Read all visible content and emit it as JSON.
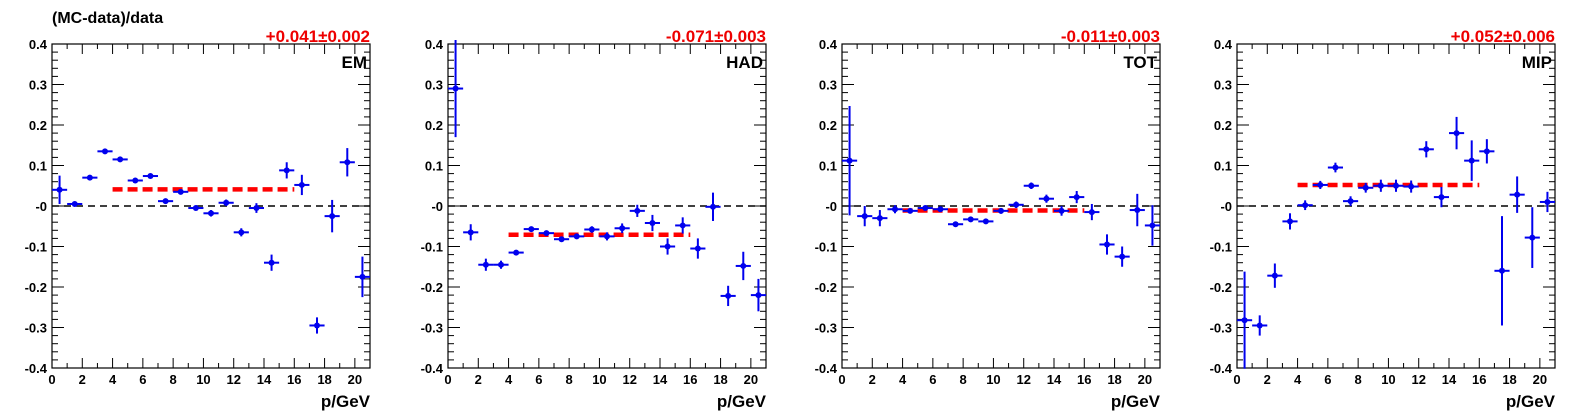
{
  "figure": {
    "ylabel": "(MC-data)/data"
  },
  "chart_data": [
    {
      "type": "scatter",
      "name": "EM",
      "fit_label": "+0.041±0.002",
      "fit": {
        "value": 0.041,
        "x_range": [
          4,
          16
        ]
      },
      "xlabel": "p/GeV",
      "xlim": [
        0,
        21
      ],
      "ylim": [
        -0.4,
        0.4
      ],
      "reference_line": 0,
      "points": [
        {
          "x": 0.5,
          "y": 0.04,
          "yerr": 0.035
        },
        {
          "x": 1.5,
          "y": 0.005,
          "yerr": 0.005
        },
        {
          "x": 2.5,
          "y": 0.07,
          "yerr": 0.004
        },
        {
          "x": 3.5,
          "y": 0.135,
          "yerr": 0.004
        },
        {
          "x": 4.5,
          "y": 0.115,
          "yerr": 0.004
        },
        {
          "x": 5.5,
          "y": 0.063,
          "yerr": 0.004
        },
        {
          "x": 6.5,
          "y": 0.074,
          "yerr": 0.004
        },
        {
          "x": 7.5,
          "y": 0.012,
          "yerr": 0.005
        },
        {
          "x": 8.5,
          "y": 0.035,
          "yerr": 0.005
        },
        {
          "x": 9.5,
          "y": -0.005,
          "yerr": 0.006
        },
        {
          "x": 10.5,
          "y": -0.018,
          "yerr": 0.008
        },
        {
          "x": 11.5,
          "y": 0.008,
          "yerr": 0.008
        },
        {
          "x": 12.5,
          "y": -0.065,
          "yerr": 0.01
        },
        {
          "x": 13.5,
          "y": -0.005,
          "yerr": 0.012
        },
        {
          "x": 14.5,
          "y": -0.14,
          "yerr": 0.02
        },
        {
          "x": 15.5,
          "y": 0.088,
          "yerr": 0.02
        },
        {
          "x": 16.5,
          "y": 0.052,
          "yerr": 0.025
        },
        {
          "x": 17.5,
          "y": -0.295,
          "yerr": 0.02
        },
        {
          "x": 18.5,
          "y": -0.025,
          "yerr": 0.04
        },
        {
          "x": 19.5,
          "y": 0.108,
          "yerr": 0.035
        },
        {
          "x": 20.5,
          "y": -0.175,
          "yerr": 0.05
        }
      ]
    },
    {
      "type": "scatter",
      "name": "HAD",
      "fit_label": "-0.071±0.003",
      "fit": {
        "value": -0.071,
        "x_range": [
          4,
          16
        ]
      },
      "xlabel": "p/GeV",
      "xlim": [
        0,
        21
      ],
      "ylim": [
        -0.4,
        0.4
      ],
      "reference_line": 0,
      "points": [
        {
          "x": 0.5,
          "y": 0.29,
          "yerr": 0.12
        },
        {
          "x": 1.5,
          "y": -0.065,
          "yerr": 0.02
        },
        {
          "x": 2.5,
          "y": -0.145,
          "yerr": 0.015
        },
        {
          "x": 3.5,
          "y": -0.145,
          "yerr": 0.01
        },
        {
          "x": 4.5,
          "y": -0.115,
          "yerr": 0.005
        },
        {
          "x": 5.5,
          "y": -0.057,
          "yerr": 0.005
        },
        {
          "x": 6.5,
          "y": -0.067,
          "yerr": 0.005
        },
        {
          "x": 7.5,
          "y": -0.082,
          "yerr": 0.005
        },
        {
          "x": 8.5,
          "y": -0.075,
          "yerr": 0.006
        },
        {
          "x": 9.5,
          "y": -0.058,
          "yerr": 0.008
        },
        {
          "x": 10.5,
          "y": -0.075,
          "yerr": 0.01
        },
        {
          "x": 11.5,
          "y": -0.055,
          "yerr": 0.012
        },
        {
          "x": 12.5,
          "y": -0.012,
          "yerr": 0.015
        },
        {
          "x": 13.5,
          "y": -0.042,
          "yerr": 0.02
        },
        {
          "x": 14.5,
          "y": -0.1,
          "yerr": 0.02
        },
        {
          "x": 15.5,
          "y": -0.048,
          "yerr": 0.02
        },
        {
          "x": 16.5,
          "y": -0.105,
          "yerr": 0.025
        },
        {
          "x": 17.5,
          "y": -0.002,
          "yerr": 0.035
        },
        {
          "x": 18.5,
          "y": -0.222,
          "yerr": 0.025
        },
        {
          "x": 19.5,
          "y": -0.148,
          "yerr": 0.035
        },
        {
          "x": 20.5,
          "y": -0.22,
          "yerr": 0.04
        }
      ]
    },
    {
      "type": "scatter",
      "name": "TOT",
      "fit_label": "-0.011±0.003",
      "fit": {
        "value": -0.011,
        "x_range": [
          4,
          16
        ]
      },
      "xlabel": "p/GeV",
      "xlim": [
        0,
        21
      ],
      "ylim": [
        -0.4,
        0.4
      ],
      "reference_line": 0,
      "points": [
        {
          "x": 0.5,
          "y": 0.112,
          "yerr": 0.135
        },
        {
          "x": 1.5,
          "y": -0.025,
          "yerr": 0.025
        },
        {
          "x": 2.5,
          "y": -0.03,
          "yerr": 0.02
        },
        {
          "x": 3.5,
          "y": -0.008,
          "yerr": 0.01
        },
        {
          "x": 4.5,
          "y": -0.012,
          "yerr": 0.005
        },
        {
          "x": 5.5,
          "y": -0.005,
          "yerr": 0.004
        },
        {
          "x": 6.5,
          "y": -0.008,
          "yerr": 0.004
        },
        {
          "x": 7.5,
          "y": -0.045,
          "yerr": 0.004
        },
        {
          "x": 8.5,
          "y": -0.033,
          "yerr": 0.005
        },
        {
          "x": 9.5,
          "y": -0.038,
          "yerr": 0.006
        },
        {
          "x": 10.5,
          "y": -0.012,
          "yerr": 0.007
        },
        {
          "x": 11.5,
          "y": 0.003,
          "yerr": 0.008
        },
        {
          "x": 12.5,
          "y": 0.05,
          "yerr": 0.008
        },
        {
          "x": 13.5,
          "y": 0.018,
          "yerr": 0.01
        },
        {
          "x": 14.5,
          "y": -0.012,
          "yerr": 0.012
        },
        {
          "x": 15.5,
          "y": 0.022,
          "yerr": 0.015
        },
        {
          "x": 16.5,
          "y": -0.015,
          "yerr": 0.02
        },
        {
          "x": 17.5,
          "y": -0.095,
          "yerr": 0.025
        },
        {
          "x": 18.5,
          "y": -0.125,
          "yerr": 0.025
        },
        {
          "x": 19.5,
          "y": -0.01,
          "yerr": 0.04
        },
        {
          "x": 20.5,
          "y": -0.048,
          "yerr": 0.05
        }
      ]
    },
    {
      "type": "scatter",
      "name": "MIP",
      "fit_label": "+0.052±0.006",
      "fit": {
        "value": 0.052,
        "x_range": [
          4,
          16
        ]
      },
      "xlabel": "p/GeV",
      "xlim": [
        0,
        21
      ],
      "ylim": [
        -0.4,
        0.4
      ],
      "reference_line": 0,
      "points": [
        {
          "x": 0.5,
          "y": -0.282,
          "yerr": 0.12
        },
        {
          "x": 1.5,
          "y": -0.295,
          "yerr": 0.025
        },
        {
          "x": 2.5,
          "y": -0.172,
          "yerr": 0.03
        },
        {
          "x": 3.5,
          "y": -0.038,
          "yerr": 0.02
        },
        {
          "x": 4.5,
          "y": 0.002,
          "yerr": 0.012
        },
        {
          "x": 5.5,
          "y": 0.052,
          "yerr": 0.01
        },
        {
          "x": 6.5,
          "y": 0.095,
          "yerr": 0.012
        },
        {
          "x": 7.5,
          "y": 0.012,
          "yerr": 0.012
        },
        {
          "x": 8.5,
          "y": 0.045,
          "yerr": 0.012
        },
        {
          "x": 9.5,
          "y": 0.05,
          "yerr": 0.015
        },
        {
          "x": 10.5,
          "y": 0.05,
          "yerr": 0.015
        },
        {
          "x": 11.5,
          "y": 0.048,
          "yerr": 0.015
        },
        {
          "x": 12.5,
          "y": 0.14,
          "yerr": 0.02
        },
        {
          "x": 13.5,
          "y": 0.022,
          "yerr": 0.025
        },
        {
          "x": 14.5,
          "y": 0.18,
          "yerr": 0.04
        },
        {
          "x": 15.5,
          "y": 0.112,
          "yerr": 0.05
        },
        {
          "x": 16.5,
          "y": 0.135,
          "yerr": 0.03
        },
        {
          "x": 17.5,
          "y": -0.16,
          "yerr": 0.135
        },
        {
          "x": 18.5,
          "y": 0.028,
          "yerr": 0.045
        },
        {
          "x": 19.5,
          "y": -0.078,
          "yerr": 0.075
        },
        {
          "x": 20.5,
          "y": 0.01,
          "yerr": 0.025
        }
      ]
    }
  ]
}
